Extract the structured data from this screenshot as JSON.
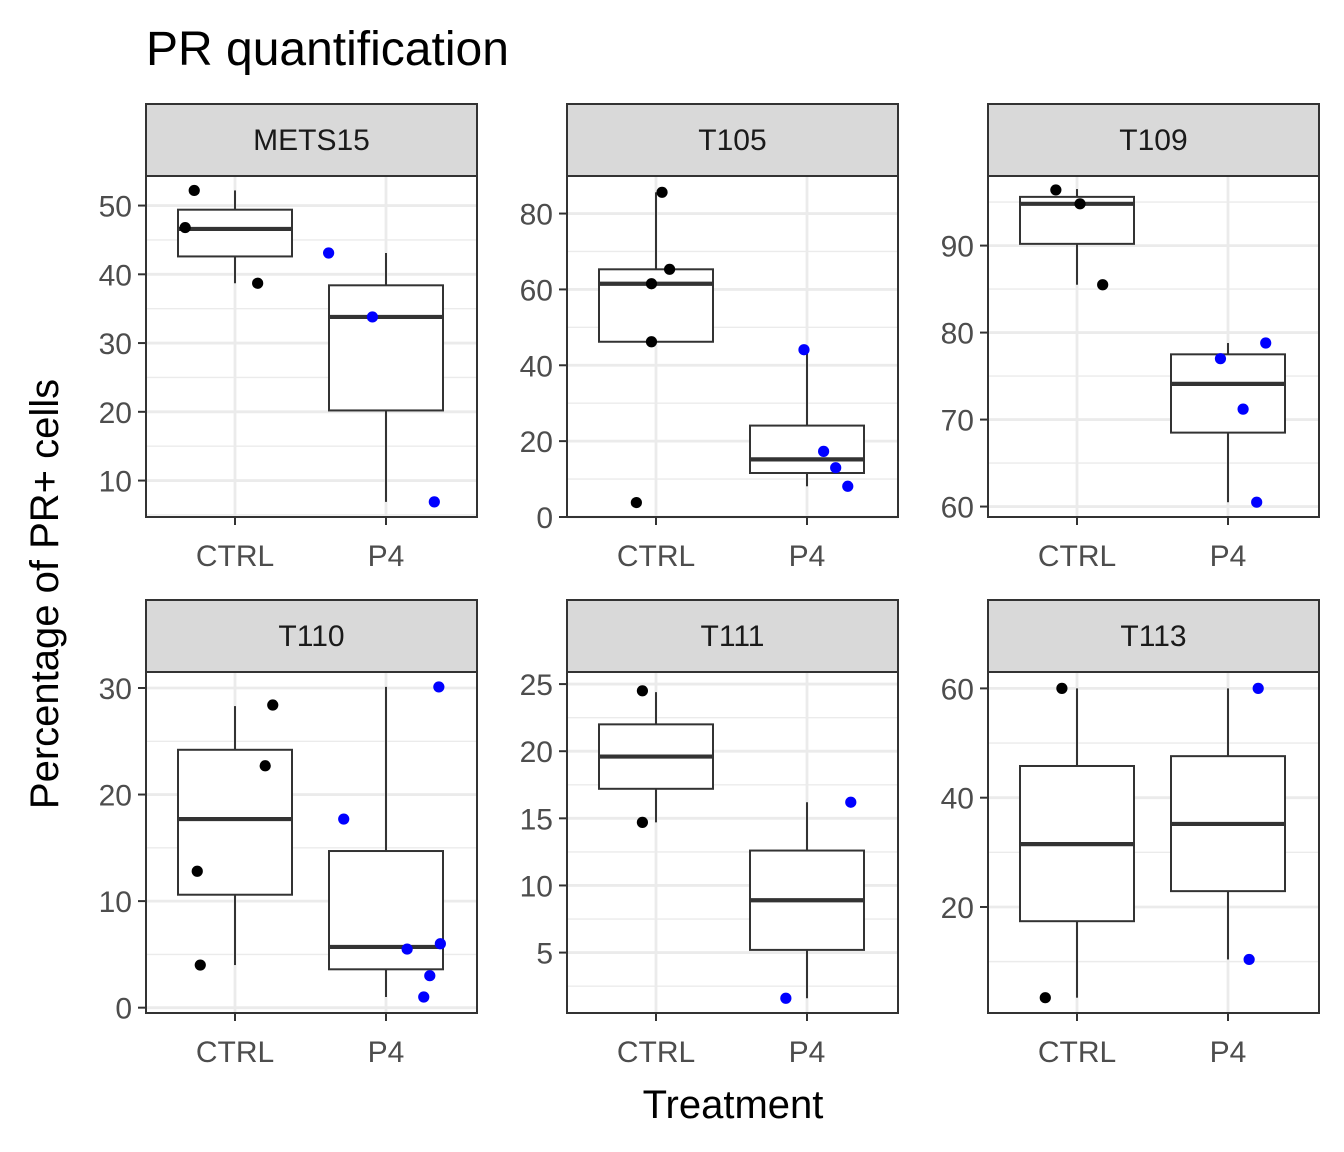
{
  "title": "PR quantification",
  "xlabel": "Treatment",
  "ylabel": "Percentage of PR+ cells",
  "colors": {
    "CTRL": "#000000",
    "P4": "#0000ff",
    "strip_fill": "#d9d9d9",
    "box_line": "#333333"
  },
  "chart_data": [
    {
      "type": "box",
      "panel": "METS15",
      "categories": [
        "CTRL",
        "P4"
      ],
      "ylim": [
        4.7,
        54.3
      ],
      "yticks": [
        10,
        20,
        30,
        40,
        50
      ],
      "boxes": [
        {
          "category": "CTRL",
          "lower": 38.7,
          "q1": 42.6,
          "median": 46.6,
          "q3": 49.4,
          "upper": 52.2
        },
        {
          "category": "P4",
          "lower": 6.9,
          "q1": 20.2,
          "median": 33.8,
          "q3": 38.4,
          "upper": 43.1
        }
      ],
      "points": [
        {
          "category": "CTRL",
          "jitter": -0.33,
          "y": 46.8
        },
        {
          "category": "CTRL",
          "jitter": -0.27,
          "y": 52.2
        },
        {
          "category": "CTRL",
          "jitter": 0.15,
          "y": 38.7
        },
        {
          "category": "P4",
          "jitter": -0.38,
          "y": 43.1
        },
        {
          "category": "P4",
          "jitter": -0.09,
          "y": 33.8
        },
        {
          "category": "P4",
          "jitter": 0.32,
          "y": 6.9
        }
      ]
    },
    {
      "type": "box",
      "panel": "T105",
      "categories": [
        "CTRL",
        "P4"
      ],
      "ylim": [
        0,
        89.9
      ],
      "yticks": [
        0,
        20,
        40,
        60,
        80
      ],
      "boxes": [
        {
          "category": "CTRL",
          "lower": 46.2,
          "q1": 46.2,
          "median": 61.5,
          "q3": 65.3,
          "upper": 85.6
        },
        {
          "category": "P4",
          "lower": 8.1,
          "q1": 11.6,
          "median": 15.2,
          "q3": 24.1,
          "upper": 44.1
        }
      ],
      "points": [
        {
          "category": "CTRL",
          "jitter": -0.13,
          "y": 3.8
        },
        {
          "category": "CTRL",
          "jitter": 0.04,
          "y": 85.6
        },
        {
          "category": "CTRL",
          "jitter": -0.03,
          "y": 61.5
        },
        {
          "category": "CTRL",
          "jitter": 0.09,
          "y": 65.3
        },
        {
          "category": "CTRL",
          "jitter": -0.03,
          "y": 46.2
        },
        {
          "category": "P4",
          "jitter": -0.02,
          "y": 44.1
        },
        {
          "category": "P4",
          "jitter": 0.11,
          "y": 17.3
        },
        {
          "category": "P4",
          "jitter": 0.19,
          "y": 13.0
        },
        {
          "category": "P4",
          "jitter": 0.27,
          "y": 8.1
        }
      ]
    },
    {
      "type": "box",
      "panel": "T109",
      "categories": [
        "CTRL",
        "P4"
      ],
      "ylim": [
        58.8,
        98.0
      ],
      "yticks": [
        60,
        70,
        80,
        90
      ],
      "boxes": [
        {
          "category": "CTRL",
          "lower": 85.5,
          "q1": 90.2,
          "median": 94.8,
          "q3": 95.6,
          "upper": 96.5
        },
        {
          "category": "P4",
          "lower": 60.5,
          "q1": 68.5,
          "median": 74.1,
          "q3": 77.5,
          "upper": 78.8
        }
      ],
      "points": [
        {
          "category": "CTRL",
          "jitter": -0.14,
          "y": 96.4
        },
        {
          "category": "CTRL",
          "jitter": 0.02,
          "y": 94.8
        },
        {
          "category": "CTRL",
          "jitter": 0.17,
          "y": 85.5
        },
        {
          "category": "P4",
          "jitter": -0.05,
          "y": 77.0
        },
        {
          "category": "P4",
          "jitter": 0.1,
          "y": 71.2
        },
        {
          "category": "P4",
          "jitter": 0.25,
          "y": 78.8
        },
        {
          "category": "P4",
          "jitter": 0.19,
          "y": 60.5
        }
      ]
    },
    {
      "type": "box",
      "panel": "T110",
      "categories": [
        "CTRL",
        "P4"
      ],
      "ylim": [
        -0.5,
        31.5
      ],
      "yticks": [
        0,
        10,
        20,
        30
      ],
      "boxes": [
        {
          "category": "CTRL",
          "lower": 4.0,
          "q1": 10.6,
          "median": 17.7,
          "q3": 24.2,
          "upper": 28.3
        },
        {
          "category": "P4",
          "lower": 1.0,
          "q1": 3.6,
          "median": 5.7,
          "q3": 14.7,
          "upper": 30.1
        }
      ],
      "points": [
        {
          "category": "CTRL",
          "jitter": -0.25,
          "y": 12.8
        },
        {
          "category": "CTRL",
          "jitter": -0.23,
          "y": 4.0
        },
        {
          "category": "CTRL",
          "jitter": 0.2,
          "y": 22.7
        },
        {
          "category": "CTRL",
          "jitter": 0.25,
          "y": 28.4
        },
        {
          "category": "P4",
          "jitter": -0.28,
          "y": 17.7
        },
        {
          "category": "P4",
          "jitter": 0.14,
          "y": 5.5
        },
        {
          "category": "P4",
          "jitter": 0.25,
          "y": 1.0
        },
        {
          "category": "P4",
          "jitter": 0.29,
          "y": 3.0
        },
        {
          "category": "P4",
          "jitter": 0.36,
          "y": 6.0
        },
        {
          "category": "P4",
          "jitter": 0.35,
          "y": 30.1
        }
      ]
    },
    {
      "type": "box",
      "panel": "T111",
      "categories": [
        "CTRL",
        "P4"
      ],
      "ylim": [
        0.5,
        25.9
      ],
      "yticks": [
        5,
        10,
        15,
        20,
        25
      ],
      "boxes": [
        {
          "category": "CTRL",
          "lower": 14.7,
          "q1": 17.2,
          "median": 19.6,
          "q3": 22.0,
          "upper": 24.4
        },
        {
          "category": "P4",
          "lower": 1.6,
          "q1": 5.2,
          "median": 8.9,
          "q3": 12.6,
          "upper": 16.2
        }
      ],
      "points": [
        {
          "category": "CTRL",
          "jitter": -0.09,
          "y": 24.5
        },
        {
          "category": "CTRL",
          "jitter": -0.09,
          "y": 14.7
        },
        {
          "category": "P4",
          "jitter": -0.14,
          "y": 1.6
        },
        {
          "category": "P4",
          "jitter": 0.29,
          "y": 16.2
        }
      ]
    },
    {
      "type": "box",
      "panel": "T113",
      "categories": [
        "CTRL",
        "P4"
      ],
      "ylim": [
        0.6,
        63.0
      ],
      "yticks": [
        20,
        40,
        60
      ],
      "boxes": [
        {
          "category": "CTRL",
          "lower": 3.4,
          "q1": 17.4,
          "median": 31.5,
          "q3": 45.8,
          "upper": 60.0
        },
        {
          "category": "P4",
          "lower": 10.4,
          "q1": 22.9,
          "median": 35.2,
          "q3": 47.6,
          "upper": 60.0
        }
      ],
      "points": [
        {
          "category": "CTRL",
          "jitter": -0.21,
          "y": 3.4
        },
        {
          "category": "CTRL",
          "jitter": -0.1,
          "y": 60.0
        },
        {
          "category": "P4",
          "jitter": 0.14,
          "y": 10.4
        },
        {
          "category": "P4",
          "jitter": 0.2,
          "y": 60.0
        }
      ]
    }
  ]
}
